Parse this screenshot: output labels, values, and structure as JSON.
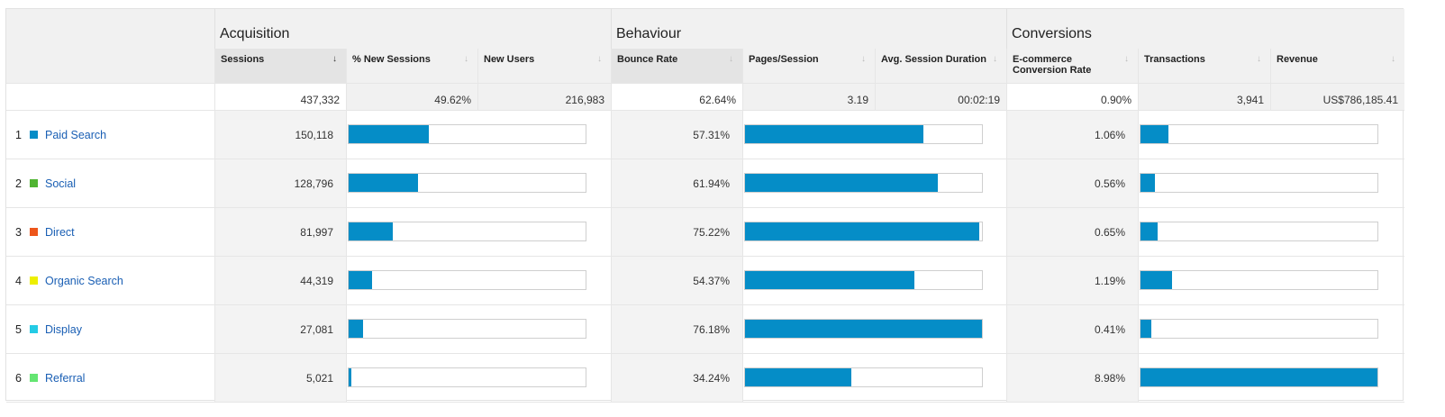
{
  "groups": {
    "acquisition": "Acquisition",
    "behaviour": "Behaviour",
    "conversions": "Conversions"
  },
  "columns": [
    {
      "key": "sessions",
      "label": "Sessions",
      "sort_icon": "↓",
      "sorted": true
    },
    {
      "key": "new_sessions",
      "label": "% New Sessions",
      "sort_icon": "↓",
      "sorted": false
    },
    {
      "key": "new_users",
      "label": "New Users",
      "sort_icon": "↓",
      "sorted": false
    },
    {
      "key": "bounce_rate",
      "label": "Bounce Rate",
      "sort_icon": "↓",
      "sorted": false
    },
    {
      "key": "pages_session",
      "label": "Pages/Session",
      "sort_icon": "↓",
      "sorted": false
    },
    {
      "key": "avg_duration",
      "label": "Avg. Session Duration",
      "sort_icon": "↓",
      "sorted": false
    },
    {
      "key": "ecom_rate",
      "label": "E-commerce Conversion Rate",
      "sort_icon": "↓",
      "sorted": false
    },
    {
      "key": "transactions",
      "label": "Transactions",
      "sort_icon": "↓",
      "sorted": false
    },
    {
      "key": "revenue",
      "label": "Revenue",
      "sort_icon": "↓",
      "sorted": false
    }
  ],
  "totals": {
    "sessions": "437,332",
    "new_sessions": "49.62%",
    "new_users": "216,983",
    "bounce_rate": "62.64%",
    "pages_session": "3.19",
    "avg_duration": "00:02:19",
    "ecom_rate": "0.90%",
    "transactions": "3,941",
    "revenue": "US$786,185.41"
  },
  "rows": [
    {
      "num": "1",
      "name": "Paid Search",
      "color": "#058dc7",
      "sessions": "150,118",
      "sessions_share": 0.34,
      "bounce_rate": "57.31%",
      "bounce_share": 0.752,
      "ecom_rate": "1.06%",
      "ecom_share": 0.118
    },
    {
      "num": "2",
      "name": "Social",
      "color": "#50b432",
      "sessions": "128,796",
      "sessions_share": 0.293,
      "bounce_rate": "61.94%",
      "bounce_share": 0.813,
      "ecom_rate": "0.56%",
      "ecom_share": 0.062
    },
    {
      "num": "3",
      "name": "Direct",
      "color": "#ed561b",
      "sessions": "81,997",
      "sessions_share": 0.186,
      "bounce_rate": "75.22%",
      "bounce_share": 0.987,
      "ecom_rate": "0.65%",
      "ecom_share": 0.072
    },
    {
      "num": "4",
      "name": "Organic Search",
      "color": "#edef00",
      "sessions": "44,319",
      "sessions_share": 0.1,
      "bounce_rate": "54.37%",
      "bounce_share": 0.714,
      "ecom_rate": "1.19%",
      "ecom_share": 0.133
    },
    {
      "num": "5",
      "name": "Display",
      "color": "#24cbe5",
      "sessions": "27,081",
      "sessions_share": 0.062,
      "bounce_rate": "76.18%",
      "bounce_share": 1.0,
      "ecom_rate": "0.41%",
      "ecom_share": 0.046
    },
    {
      "num": "6",
      "name": "Referral",
      "color": "#64e572",
      "sessions": "5,021",
      "sessions_share": 0.011,
      "bounce_rate": "34.24%",
      "bounce_share": 0.449,
      "ecom_rate": "8.98%",
      "ecom_share": 1.0
    }
  ]
}
